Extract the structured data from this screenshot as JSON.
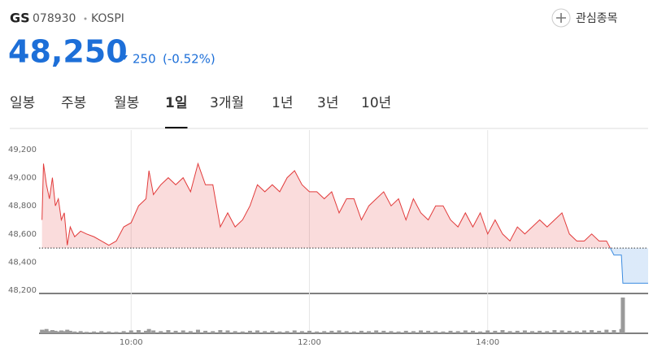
{
  "header": {
    "name": "GS",
    "code": "078930",
    "market": "KOSPI",
    "price": "48,250",
    "change": "250",
    "change_rate": "(-0.52%)",
    "watch": "관심종목"
  },
  "tabs": [
    "일봉",
    "주봉",
    "월봉",
    "1일",
    "3개월",
    "1년",
    "3년",
    "10년"
  ],
  "selected_tab": 3,
  "chart_data": {
    "type": "line",
    "x": [
      "09:00",
      "09:01",
      "09:03",
      "09:05",
      "09:07",
      "09:09",
      "09:11",
      "09:13",
      "09:15",
      "09:17",
      "09:19",
      "09:22",
      "09:26",
      "09:30",
      "09:35",
      "09:40",
      "09:45",
      "09:50",
      "09:55",
      "10:00",
      "10:05",
      "10:10",
      "10:12",
      "10:15",
      "10:20",
      "10:25",
      "10:30",
      "10:35",
      "10:40",
      "10:45",
      "10:50",
      "10:55",
      "11:00",
      "11:05",
      "11:10",
      "11:15",
      "11:20",
      "11:25",
      "11:30",
      "11:35",
      "11:40",
      "11:45",
      "11:50",
      "11:55",
      "12:00",
      "12:05",
      "12:10",
      "12:15",
      "12:20",
      "12:25",
      "12:30",
      "12:35",
      "12:40",
      "12:45",
      "12:50",
      "12:55",
      "13:00",
      "13:05",
      "13:10",
      "13:15",
      "13:20",
      "13:25",
      "13:30",
      "13:35",
      "13:40",
      "13:45",
      "13:50",
      "13:55",
      "14:00",
      "14:05",
      "14:10",
      "14:15",
      "14:20",
      "14:25",
      "14:30",
      "14:35",
      "14:40",
      "14:45",
      "14:50",
      "14:55",
      "15:00",
      "15:05",
      "15:10",
      "15:15",
      "15:20",
      "15:25",
      "15:30",
      "15:31",
      "15:48"
    ],
    "values": [
      48700,
      49100,
      48950,
      48850,
      49000,
      48800,
      48850,
      48700,
      48750,
      48520,
      48650,
      48580,
      48620,
      48600,
      48580,
      48550,
      48520,
      48550,
      48650,
      48680,
      48800,
      48850,
      49050,
      48880,
      48950,
      49000,
      48950,
      49000,
      48900,
      49100,
      48950,
      48950,
      48650,
      48750,
      48650,
      48700,
      48800,
      48950,
      48900,
      48950,
      48900,
      49000,
      49050,
      48950,
      48900,
      48900,
      48850,
      48900,
      48750,
      48850,
      48850,
      48700,
      48800,
      48850,
      48900,
      48800,
      48850,
      48700,
      48850,
      48750,
      48700,
      48800,
      48800,
      48700,
      48650,
      48750,
      48650,
      48750,
      48600,
      48700,
      48600,
      48550,
      48650,
      48600,
      48650,
      48700,
      48650,
      48700,
      48750,
      48600,
      48550,
      48550,
      48600,
      48550,
      48550,
      48450,
      48450,
      48250,
      48250
    ],
    "color": "#e23b3b",
    "down_color": "#3b8be0",
    "prev_close": 48500,
    "volume": {
      "color": "#9a9a9a",
      "values": [
        10,
        8,
        12,
        6,
        9,
        7,
        5,
        8,
        6,
        10,
        7,
        5,
        6,
        4,
        5,
        6,
        5,
        4,
        6,
        8,
        9,
        7,
        12,
        8,
        6,
        9,
        7,
        8,
        6,
        10,
        7,
        6,
        9,
        8,
        6,
        5,
        7,
        8,
        6,
        7,
        5,
        6,
        8,
        6,
        7,
        5,
        6,
        7,
        8,
        6,
        5,
        7,
        6,
        8,
        7,
        6,
        5,
        7,
        6,
        8,
        7,
        6,
        5,
        7,
        6,
        8,
        7,
        5,
        8,
        7,
        9,
        6,
        7,
        8,
        6,
        7,
        6,
        9,
        8,
        7,
        6,
        8,
        9,
        7,
        10,
        9,
        12,
        100,
        null
      ]
    },
    "xlim": [
      "08:58",
      "15:48"
    ],
    "xticks": [
      "10:00",
      "12:00",
      "14:00"
    ],
    "ylim": [
      48200,
      49200
    ],
    "yticks": [
      {
        "value": 48200,
        "label": "48,200"
      },
      {
        "value": 48400,
        "label": "48,400"
      },
      {
        "value": 48600,
        "label": "48,600"
      },
      {
        "value": 48800,
        "label": "48,800"
      },
      {
        "value": 49000,
        "label": "49,000"
      },
      {
        "value": 49200,
        "label": "49,200"
      }
    ],
    "grid": "x"
  }
}
